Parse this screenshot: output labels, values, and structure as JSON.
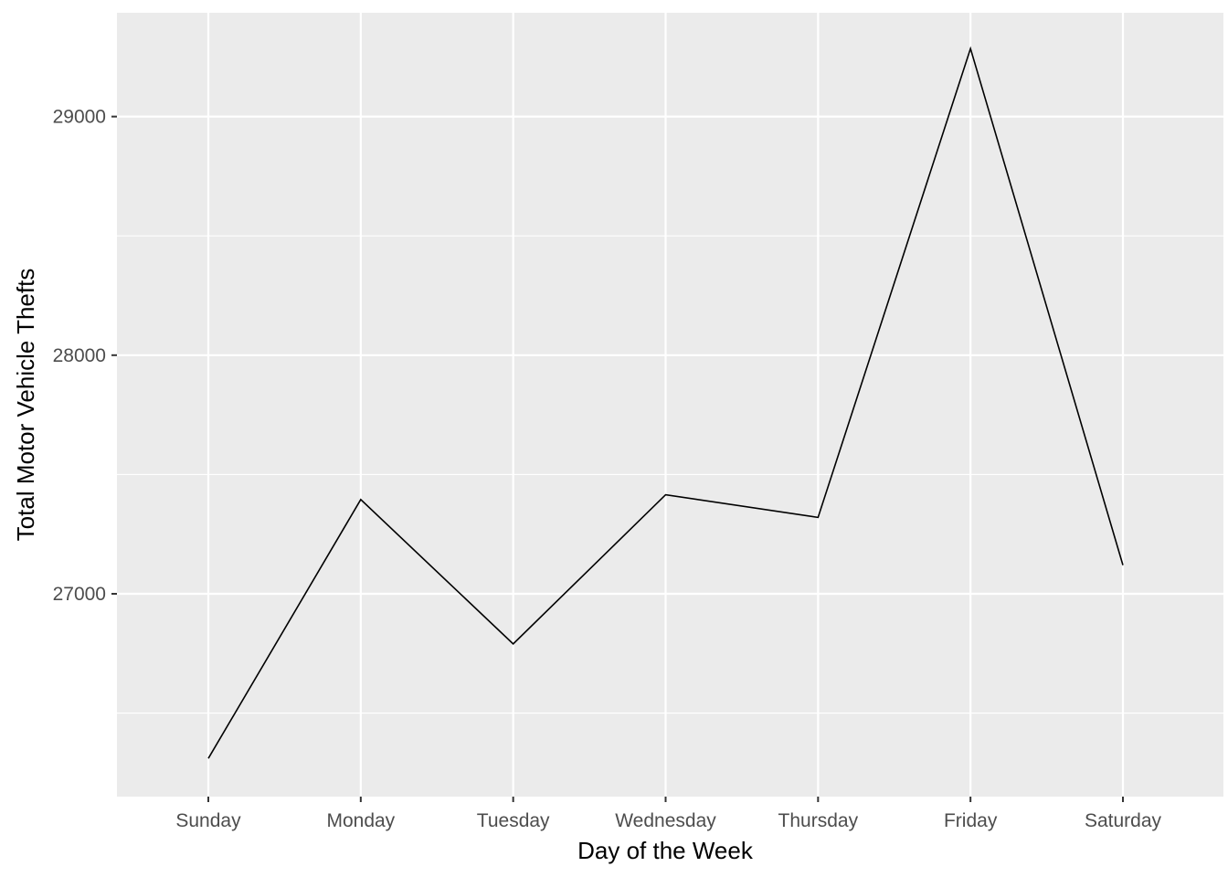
{
  "chart_data": {
    "type": "line",
    "categories": [
      "Sunday",
      "Monday",
      "Tuesday",
      "Wednesday",
      "Thursday",
      "Friday",
      "Saturday"
    ],
    "series": [
      {
        "values": [
          26310,
          27395,
          26790,
          27415,
          27320,
          29285,
          27120
        ]
      }
    ],
    "xlabel": "Day of the Week",
    "ylabel": "Total Motor Vehicle Thefts",
    "ylim": [
      26150,
      29435
    ],
    "yticks": [
      27000,
      28000,
      29000
    ],
    "yticks_minor": [
      26500,
      27500,
      28500
    ],
    "grid": true,
    "colors": {
      "panel": "#ebebeb",
      "grid": "#ffffff",
      "line": "#000000",
      "tick_text": "#4d4d4d"
    }
  }
}
